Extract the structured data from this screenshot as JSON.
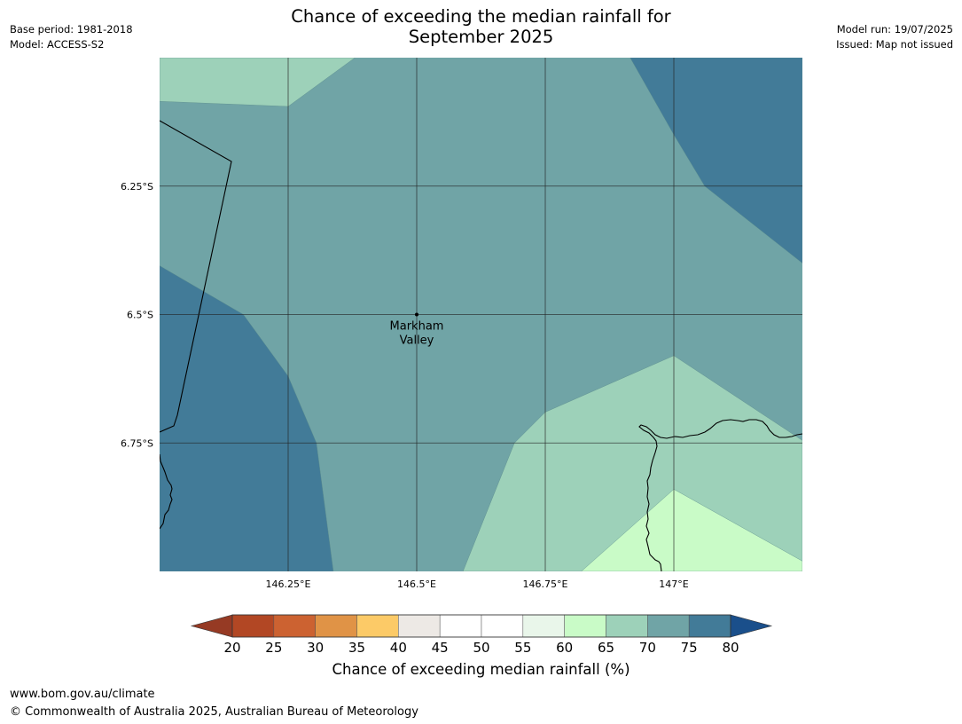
{
  "header": {
    "title_line1": "Chance of exceeding the median rainfall for",
    "title_line2": "September 2025",
    "left_line1": "Base period: 1981-2018",
    "left_line2": "Model: ACCESS-S2",
    "right_line1": "Model run: 19/07/2025",
    "right_line2": "Issued: Map not issued"
  },
  "map": {
    "lon_range": [
      146.0,
      147.25
    ],
    "lat_range": [
      -7.0,
      -6.0
    ],
    "lon_ticks": [
      {
        "value": 146.25,
        "label": "146.25°E"
      },
      {
        "value": 146.5,
        "label": "146.5°E"
      },
      {
        "value": 146.75,
        "label": "146.75°E"
      },
      {
        "value": 147.0,
        "label": "147°E"
      }
    ],
    "lat_ticks": [
      {
        "value": -6.25,
        "label": "6.25°S"
      },
      {
        "value": -6.5,
        "label": "6.5°S"
      },
      {
        "value": -6.75,
        "label": "6.75°S"
      }
    ],
    "place": {
      "name_line1": "Markham",
      "name_line2": "Valley",
      "lon": 146.5,
      "lat": -6.5
    },
    "contour_bands": [
      {
        "range": "65-70",
        "color": "#9dd1b9",
        "points": [
          [
            146.0,
            -6.0
          ],
          [
            146.38,
            -6.0
          ],
          [
            146.25,
            -6.095
          ],
          [
            146.0,
            -6.085
          ]
        ]
      },
      {
        "range": "75-80",
        "color": "#427b98",
        "points": [
          [
            146.915,
            -6.0
          ],
          [
            147.25,
            -6.0
          ],
          [
            147.25,
            -6.4
          ],
          [
            147.06,
            -6.25
          ],
          [
            147.0,
            -6.15
          ]
        ]
      },
      {
        "range": "75-80",
        "color": "#427b98",
        "points": [
          [
            146.0,
            -6.405
          ],
          [
            146.163,
            -6.5
          ],
          [
            146.25,
            -6.62
          ],
          [
            146.305,
            -6.75
          ],
          [
            146.338,
            -7.0
          ],
          [
            146.0,
            -7.0
          ]
        ]
      },
      {
        "range": "65-70",
        "color": "#9dd1b9",
        "points": [
          [
            146.59,
            -7.0
          ],
          [
            146.69,
            -6.75
          ],
          [
            146.75,
            -6.69
          ],
          [
            147.0,
            -6.58
          ],
          [
            147.25,
            -6.745
          ],
          [
            147.25,
            -7.0
          ]
        ]
      },
      {
        "range": "60-65",
        "color": "#c9fbc7",
        "points": [
          [
            146.82,
            -7.0
          ],
          [
            147.0,
            -6.84
          ],
          [
            147.25,
            -6.98
          ],
          [
            147.25,
            -7.0
          ]
        ]
      }
    ],
    "base_band": {
      "range": "70-75",
      "color": "#70a4a6"
    }
  },
  "colorbar": {
    "label": "Chance of exceeding median rainfall (%)",
    "ticks": [
      "20",
      "25",
      "30",
      "35",
      "40",
      "45",
      "50",
      "55",
      "60",
      "65",
      "70",
      "75",
      "80"
    ],
    "colors": [
      "#b24724",
      "#cc6231",
      "#e09346",
      "#fcca67",
      "#ede9e5",
      "#ffffff",
      "#ffffff",
      "#e9f6ea",
      "#c9fbc7",
      "#9dd1b9",
      "#70a4a6",
      "#427b98"
    ],
    "under_color": "#963a24",
    "over_color": "#1a4f8b"
  },
  "footer": {
    "url": "www.bom.gov.au/climate",
    "copyright": "© Commonwealth of Australia 2025, Australian Bureau of Meteorology"
  }
}
